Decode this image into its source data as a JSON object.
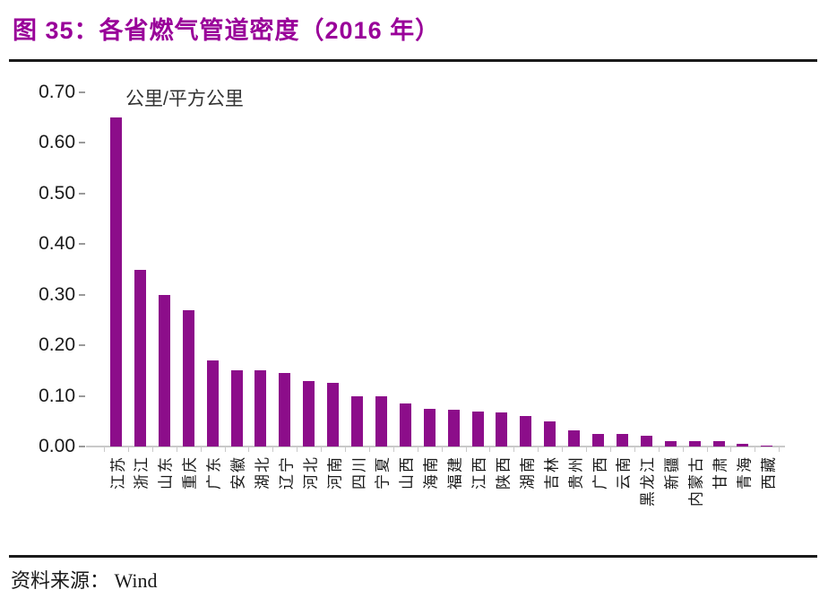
{
  "figure": {
    "title": "图 35：各省燃气管道密度（2016 年）",
    "source_label": "资料来源： Wind"
  },
  "chart_data": {
    "type": "bar",
    "title": "各省燃气管道密度（2016 年）",
    "unit_label": "公里/平方公里",
    "xlabel": "",
    "ylabel": "公里/平方公里",
    "ylim": [
      0,
      0.7
    ],
    "ytick_step": 0.1,
    "yticks": [
      "0.70",
      "0.60",
      "0.50",
      "0.40",
      "0.30",
      "0.20",
      "0.10",
      "0.00"
    ],
    "grid": false,
    "legend_position": "none",
    "bar_color": "#8C0D8A",
    "categories": [
      "江苏",
      "浙江",
      "山东",
      "重庆",
      "广东",
      "安徽",
      "湖北",
      "辽宁",
      "河北",
      "河南",
      "四川",
      "宁夏",
      "山西",
      "海南",
      "福建",
      "江西",
      "陕西",
      "湖南",
      "吉林",
      "贵州",
      "广西",
      "云南",
      "黑龙江",
      "新疆",
      "内蒙古",
      "甘肃",
      "青海",
      "西藏"
    ],
    "values": [
      0.65,
      0.35,
      0.3,
      0.27,
      0.17,
      0.15,
      0.15,
      0.145,
      0.13,
      0.125,
      0.1,
      0.1,
      0.085,
      0.075,
      0.072,
      0.07,
      0.068,
      0.06,
      0.05,
      0.032,
      0.025,
      0.025,
      0.022,
      0.01,
      0.01,
      0.01,
      0.005,
      0.002
    ]
  }
}
